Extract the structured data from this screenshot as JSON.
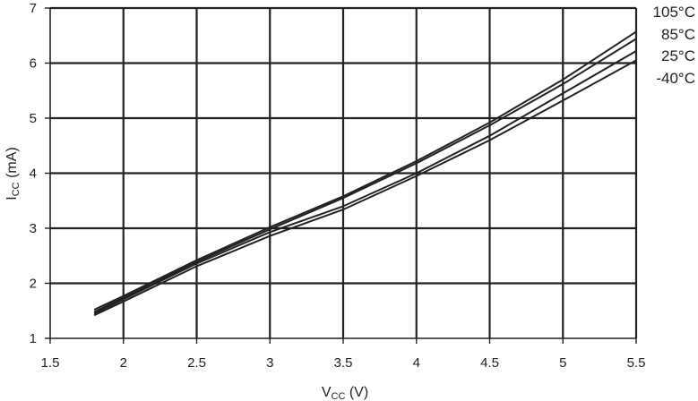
{
  "chart_data": {
    "type": "line",
    "title": "",
    "xlabel": {
      "main": "V",
      "sub": "CC",
      "unit": " (V)"
    },
    "ylabel": {
      "main": "I",
      "sub": "CC",
      "unit": " (mA)"
    },
    "xlim": [
      1.5,
      5.5
    ],
    "ylim": [
      1,
      7
    ],
    "x_ticks": [
      "1.5",
      "2",
      "2.5",
      "3",
      "3.5",
      "4",
      "4.5",
      "5",
      "5.5"
    ],
    "y_ticks": [
      "1",
      "2",
      "3",
      "4",
      "5",
      "6",
      "7"
    ],
    "grid": true,
    "legend_position": "right",
    "line_color": "#222222",
    "x": [
      1.8,
      2.0,
      2.5,
      3.0,
      3.5,
      4.0,
      4.5,
      5.0,
      5.5
    ],
    "series": [
      {
        "name": "105°C",
        "values": [
          1.52,
          1.77,
          2.42,
          3.02,
          3.58,
          4.22,
          4.92,
          5.7,
          6.57
        ]
      },
      {
        "name": "85°C",
        "values": [
          1.48,
          1.74,
          2.39,
          2.98,
          3.55,
          4.18,
          4.87,
          5.62,
          6.44
        ]
      },
      {
        "name": "25°C",
        "values": [
          1.45,
          1.71,
          2.36,
          2.93,
          3.4,
          4.0,
          4.68,
          5.45,
          6.22
        ]
      },
      {
        "name": "-40°C",
        "values": [
          1.42,
          1.67,
          2.31,
          2.86,
          3.34,
          3.95,
          4.6,
          5.32,
          6.05
        ]
      }
    ]
  }
}
